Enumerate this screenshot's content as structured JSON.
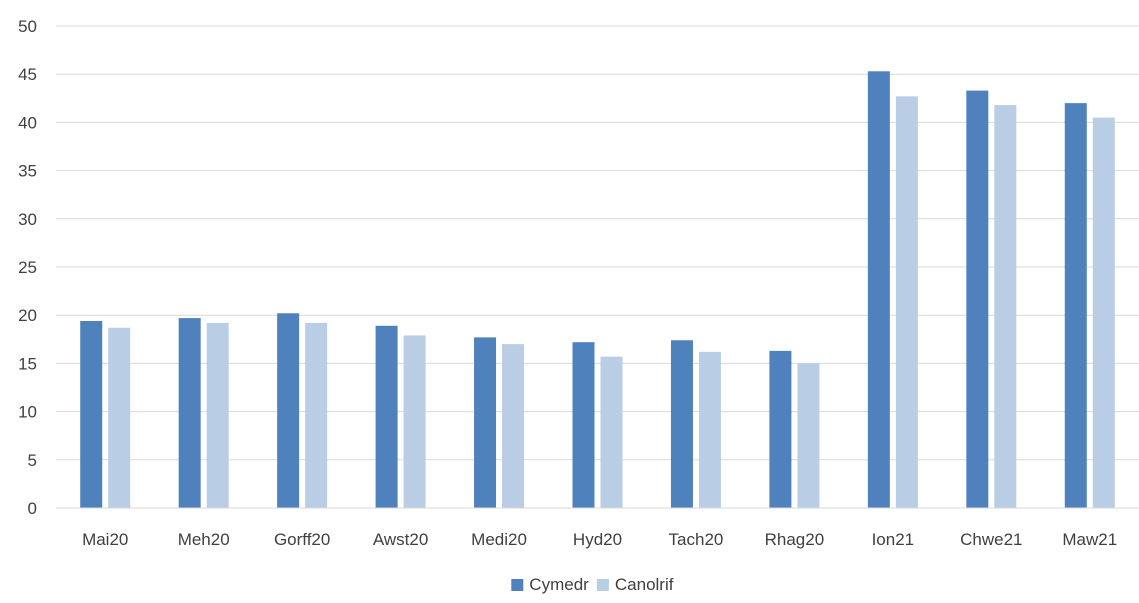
{
  "chart_data": {
    "type": "bar",
    "title": "",
    "xlabel": "",
    "ylabel": "",
    "categories": [
      "Mai20",
      "Meh20",
      "Gorff20",
      "Awst20",
      "Medi20",
      "Hyd20",
      "Tach20",
      "Rhag20",
      "Ion21",
      "Chwe21",
      "Maw21"
    ],
    "series": [
      {
        "name": "Cymedr",
        "color": "#4f81bd",
        "values": [
          19.4,
          19.7,
          20.2,
          18.9,
          17.7,
          17.2,
          17.4,
          16.3,
          45.3,
          43.3,
          42.0
        ]
      },
      {
        "name": "Canolrif",
        "color": "#b9cde5",
        "values": [
          18.7,
          19.2,
          19.2,
          17.9,
          17.0,
          15.7,
          16.2,
          15.0,
          42.7,
          41.8,
          40.5
        ]
      }
    ],
    "ylim": [
      0,
      50
    ],
    "yticks": [
      0,
      5,
      10,
      15,
      20,
      25,
      30,
      35,
      40,
      45,
      50
    ],
    "grid": true,
    "legend": "bottom-center"
  }
}
